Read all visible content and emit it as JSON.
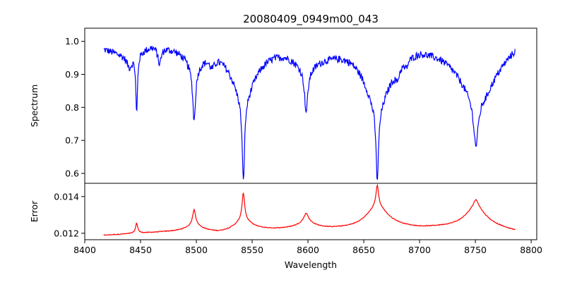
{
  "chart_data": {
    "title": "20080409_0949m00_043",
    "xlabel": "Wavelength",
    "xlim": [
      8400,
      8805
    ],
    "xticks": [
      8400,
      8450,
      8500,
      8550,
      8600,
      8650,
      8700,
      8750,
      8800
    ],
    "x_range": [
      8417,
      8786
    ],
    "panels": [
      {
        "name": "spectrum",
        "type": "line",
        "ylabel": "Spectrum",
        "color": "#0000ff",
        "ylim": [
          0.57,
          1.04
        ],
        "yticks": [
          0.6,
          0.7,
          0.8,
          0.9,
          1.0
        ],
        "ytick_labels": [
          "0.6",
          "0.7",
          "0.8",
          "0.9",
          "1.0"
        ],
        "continuum": [
          [
            8417,
            0.98
          ],
          [
            8440,
            0.96
          ],
          [
            8460,
            0.995
          ],
          [
            8480,
            0.995
          ],
          [
            8520,
            1.0
          ],
          [
            8560,
            0.995
          ],
          [
            8580,
            1.0
          ],
          [
            8620,
            0.99
          ],
          [
            8640,
            0.995
          ],
          [
            8680,
            0.99
          ],
          [
            8700,
            1.0
          ],
          [
            8720,
            0.985
          ],
          [
            8760,
            0.94
          ],
          [
            8786,
            1.0
          ]
        ],
        "features": [
          {
            "center": 8446.5,
            "depth": 0.18,
            "width": 0.9
          },
          {
            "center": 8440,
            "depth": 0.03,
            "width": 3
          },
          {
            "center": 8467,
            "depth": 0.05,
            "width": 1.8
          },
          {
            "center": 8498.0,
            "depth": 0.16,
            "width": 1.5,
            "wing": 0.06,
            "wing_width": 10
          },
          {
            "center": 8514,
            "depth": 0.03,
            "width": 3
          },
          {
            "center": 8542.1,
            "depth": 0.25,
            "width": 1.3,
            "wing": 0.16,
            "wing_width": 13
          },
          {
            "center": 8598.4,
            "depth": 0.13,
            "width": 1.8,
            "wing": 0.06,
            "wing_width": 15
          },
          {
            "center": 8662.1,
            "depth": 0.22,
            "width": 1.4,
            "wing": 0.18,
            "wing_width": 14
          },
          {
            "center": 8680,
            "depth": 0.03,
            "width": 2
          },
          {
            "center": 8688,
            "depth": 0.02,
            "width": 2
          },
          {
            "center": 8750.5,
            "depth": 0.14,
            "width": 2.5,
            "wing": 0.12,
            "wing_width": 18
          }
        ],
        "min_point": {
          "x": 8662.1,
          "y": 0.59
        }
      },
      {
        "name": "error",
        "type": "line",
        "ylabel": "Error",
        "color": "#ff0000",
        "ylim": [
          0.01165,
          0.01472
        ],
        "yticks": [
          0.012,
          0.014
        ],
        "ytick_labels": [
          "0.012",
          "0.014"
        ],
        "baseline": [
          [
            8417,
            0.01188
          ],
          [
            8440,
            0.01196
          ],
          [
            8470,
            0.01205
          ],
          [
            8500,
            0.0121
          ],
          [
            8520,
            0.01198
          ],
          [
            8560,
            0.01213
          ],
          [
            8580,
            0.01216
          ],
          [
            8620,
            0.01218
          ],
          [
            8640,
            0.0122
          ],
          [
            8680,
            0.01226
          ],
          [
            8700,
            0.01222
          ],
          [
            8720,
            0.01225
          ],
          [
            8770,
            0.01216
          ],
          [
            8786,
            0.01205
          ]
        ],
        "peaks": [
          {
            "center": 8446.5,
            "height": 0.00055,
            "width": 1.2
          },
          {
            "center": 8498.0,
            "height": 0.00085,
            "width": 1.6,
            "wing": 0.0003,
            "wing_width": 9
          },
          {
            "center": 8542.1,
            "height": 0.0015,
            "width": 1.4,
            "wing": 0.0006,
            "wing_width": 10
          },
          {
            "center": 8598.4,
            "height": 0.0005,
            "width": 2.5,
            "wing": 0.00035,
            "wing_width": 11
          },
          {
            "center": 8662.1,
            "height": 0.00115,
            "width": 1.4,
            "wing": 0.0012,
            "wing_width": 12
          },
          {
            "center": 8750.5,
            "height": 0.0005,
            "width": 3.0,
            "wing": 0.0011,
            "wing_width": 13
          }
        ],
        "max_point": {
          "x": 8662.1,
          "y": 0.01458
        }
      }
    ]
  }
}
